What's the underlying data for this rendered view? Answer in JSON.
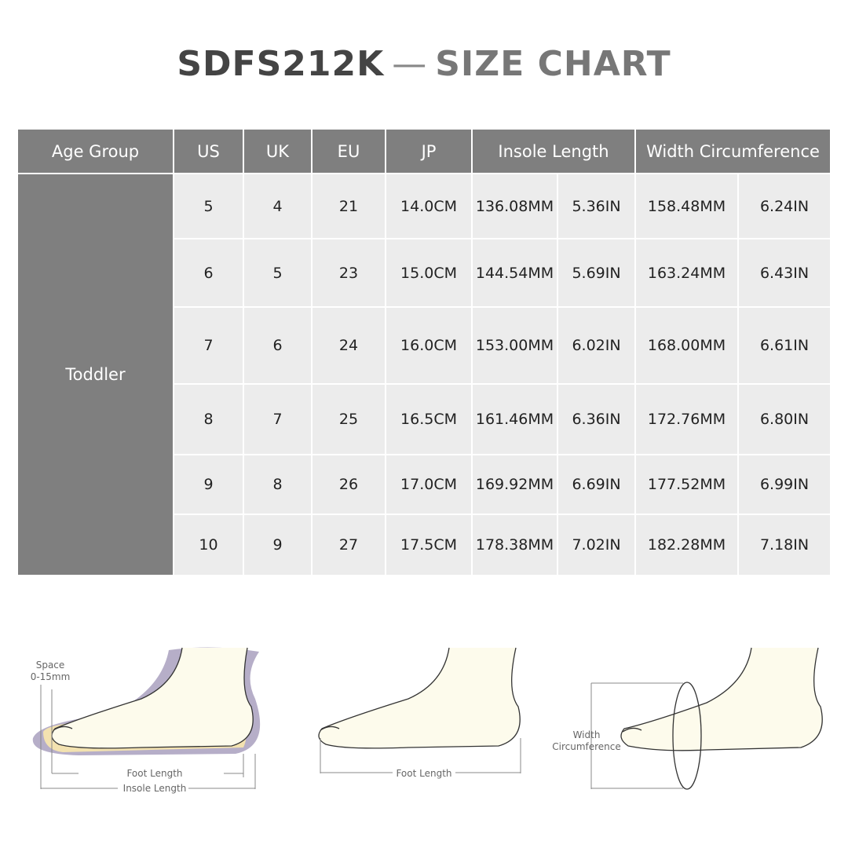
{
  "title": {
    "model": "SDFS212K",
    "separator": "—",
    "text": "SIZE CHART"
  },
  "table": {
    "headers": [
      "Age Group",
      "US",
      "UK",
      "EU",
      "JP",
      "Insole Length",
      "Width Circumference"
    ],
    "age_group": "Toddler",
    "rows": [
      [
        5,
        4,
        21,
        "14.0CM",
        "136.08MM",
        "5.36IN",
        "158.48MM",
        "6.24IN"
      ],
      [
        6,
        5,
        23,
        "15.0CM",
        "144.54MM",
        "5.69IN",
        "163.24MM",
        "6.43IN"
      ],
      [
        7,
        6,
        24,
        "16.0CM",
        "153.00MM",
        "6.02IN",
        "168.00MM",
        "6.61IN"
      ],
      [
        8,
        7,
        25,
        "16.5CM",
        "161.46MM",
        "6.36IN",
        "172.76MM",
        "6.80IN"
      ],
      [
        9,
        8,
        26,
        "17.0CM",
        "169.92MM",
        "6.69IN",
        "177.52MM",
        "6.99IN"
      ],
      [
        10,
        9,
        27,
        "17.5CM",
        "178.38MM",
        "7.02IN",
        "182.28MM",
        "7.18IN"
      ]
    ]
  },
  "diagrams": {
    "space_label": "Space",
    "space_range": "0-15mm",
    "foot_length": "Foot Length",
    "insole_length": "Insole Length",
    "foot_length_2": "Foot Length",
    "width_label": "Width",
    "circumference_label": "Circumference"
  }
}
